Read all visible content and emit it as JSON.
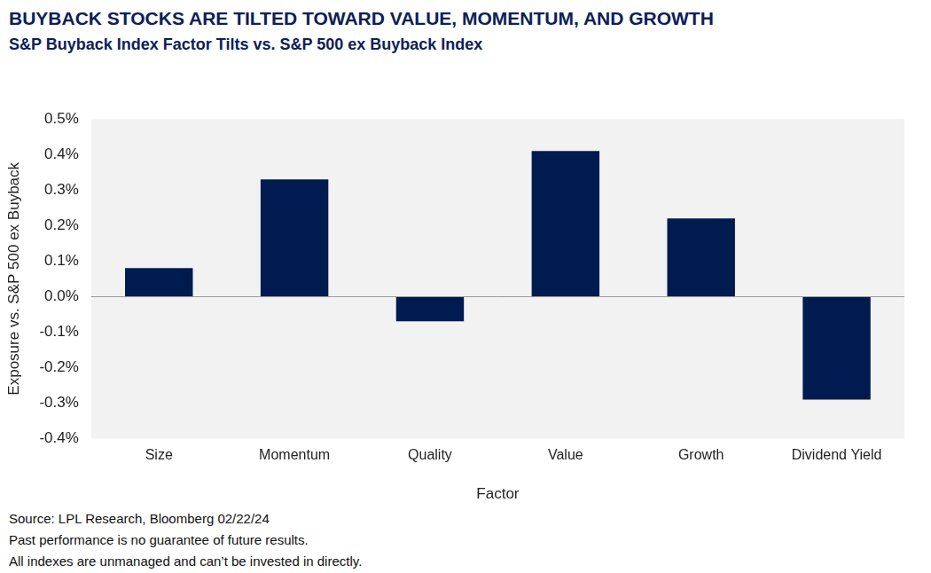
{
  "chart_data": {
    "type": "bar",
    "title": "BUYBACK STOCKS ARE TILTED TOWARD VALUE, MOMENTUM, AND GROWTH",
    "subtitle": "S&P Buyback Index Factor Tilts vs. S&P 500 ex Buyback Index",
    "x_label": "Factor",
    "y_label": "Exposure vs. S&P 500 ex Buyback",
    "categories": [
      "Size",
      "Momentum",
      "Quality",
      "Value",
      "Growth",
      "Dividend Yield"
    ],
    "values": [
      0.08,
      0.33,
      -0.07,
      0.41,
      0.22,
      -0.29
    ],
    "color": "#001b4f",
    "ylim": [
      -0.4,
      0.5
    ],
    "yticks": [
      {
        "value": -0.4,
        "label": "-0.4%"
      },
      {
        "value": -0.3,
        "label": "-0.3%"
      },
      {
        "value": -0.2,
        "label": "-0.2%"
      },
      {
        "value": -0.1,
        "label": "-0.1%"
      },
      {
        "value": 0.0,
        "label": "0.0%"
      },
      {
        "value": 0.1,
        "label": "0.1%"
      },
      {
        "value": 0.2,
        "label": "0.2%"
      },
      {
        "value": 0.3,
        "label": "0.3%"
      },
      {
        "value": 0.4,
        "label": "0.4%"
      },
      {
        "value": 0.5,
        "label": "0.5%"
      }
    ],
    "grid": false,
    "notes": [
      "Source: LPL Research, Bloomberg 02/22/24",
      "Past performance is no guarantee of future results.",
      "All indexes are unmanaged and can’t be invested in directly."
    ]
  }
}
